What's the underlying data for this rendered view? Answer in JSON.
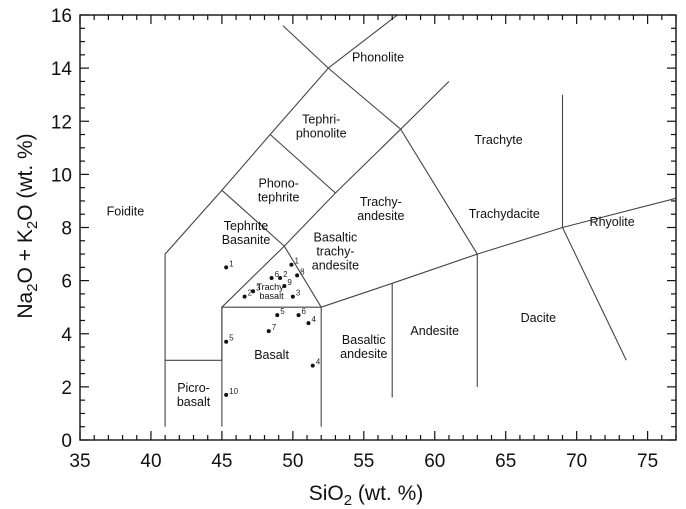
{
  "chart_data": {
    "type": "scatter",
    "title": "",
    "xlabel": "SiO",
    "xlabel_sub": "2",
    "xlabel_unit": " (wt. %)",
    "ylabel_parts": [
      "Na",
      "2",
      "O + K",
      "2",
      "O (wt. %)"
    ],
    "xlim": [
      35,
      77
    ],
    "ylim": [
      0,
      16
    ],
    "x_ticks": [
      35,
      40,
      45,
      50,
      55,
      60,
      65,
      70,
      75
    ],
    "y_ticks": [
      0,
      2,
      4,
      6,
      8,
      10,
      12,
      14,
      16
    ],
    "x_tick_labels": [
      "35",
      "40",
      "45",
      "50",
      "55",
      "60",
      "65",
      "70",
      "75"
    ],
    "y_tick_labels": [
      "0",
      "2",
      "4",
      "6",
      "8",
      "10",
      "12",
      "14",
      "16"
    ],
    "field_boundaries": [
      [
        [
          41,
          0.5
        ],
        [
          41,
          7
        ],
        [
          45,
          9.4
        ],
        [
          48.4,
          11.5
        ],
        [
          52.5,
          14
        ],
        [
          57.6,
          11.7
        ],
        [
          63,
          7
        ],
        [
          69,
          8
        ],
        [
          77,
          9.1
        ]
      ],
      [
        [
          41,
          3
        ],
        [
          45,
          3
        ],
        [
          45,
          5
        ],
        [
          52,
          5
        ],
        [
          52,
          0.5
        ]
      ],
      [
        [
          45,
          0.5
        ],
        [
          45,
          5
        ]
      ],
      [
        [
          45,
          5
        ],
        [
          49.4,
          7.3
        ],
        [
          53,
          9.3
        ],
        [
          57.6,
          11.7
        ],
        [
          61,
          13.5
        ]
      ],
      [
        [
          49.4,
          7.3
        ],
        [
          52,
          5
        ],
        [
          57,
          5.9
        ],
        [
          63,
          7
        ]
      ],
      [
        [
          57,
          1.6
        ],
        [
          57,
          5.9
        ]
      ],
      [
        [
          63,
          2
        ],
        [
          63,
          7
        ]
      ],
      [
        [
          69,
          13
        ],
        [
          69,
          8
        ],
        [
          73.5,
          3
        ]
      ],
      [
        [
          45,
          9.4
        ],
        [
          49.4,
          7.3
        ]
      ],
      [
        [
          48.4,
          11.5
        ],
        [
          53,
          9.3
        ]
      ],
      [
        [
          52.5,
          14
        ],
        [
          49.3,
          15.6
        ]
      ],
      [
        [
          52.5,
          14
        ],
        [
          61,
          17.5
        ]
      ]
    ],
    "field_labels": [
      {
        "lines": [
          "Foidite"
        ],
        "x": 38.2,
        "y": 8.6
      },
      {
        "lines": [
          "Phonolite"
        ],
        "x": 56,
        "y": 14.4
      },
      {
        "lines": [
          "Tephri-",
          "phonolite"
        ],
        "x": 52,
        "y": 11.8
      },
      {
        "lines": [
          "Phono-",
          "tephrite"
        ],
        "x": 49,
        "y": 9.4
      },
      {
        "lines": [
          "Tephrite",
          "Basanite"
        ],
        "x": 46.7,
        "y": 7.8
      },
      {
        "lines": [
          "Trachyte"
        ],
        "x": 64.5,
        "y": 11.3
      },
      {
        "lines": [
          "Trachy-",
          "andesite"
        ],
        "x": 56.2,
        "y": 8.7
      },
      {
        "lines": [
          "Basaltic",
          "trachy-",
          "andesite"
        ],
        "x": 53,
        "y": 7.1
      },
      {
        "lines": [
          "Trachydacite"
        ],
        "x": 64.9,
        "y": 8.5
      },
      {
        "lines": [
          "Rhyolite"
        ],
        "x": 72.5,
        "y": 8.2
      },
      {
        "lines": [
          "Trachy-",
          "basalt"
        ],
        "x": 48.5,
        "y": 5.6,
        "small": true
      },
      {
        "lines": [
          "Andesite"
        ],
        "x": 60,
        "y": 4.1
      },
      {
        "lines": [
          "Dacite"
        ],
        "x": 67.3,
        "y": 4.6
      },
      {
        "lines": [
          "Basaltic",
          "andesite"
        ],
        "x": 55,
        "y": 3.5
      },
      {
        "lines": [
          "Basalt"
        ],
        "x": 48.5,
        "y": 3.2
      },
      {
        "lines": [
          "Picro-",
          "basalt"
        ],
        "x": 43,
        "y": 1.7
      }
    ],
    "series": [
      {
        "points": [
          {
            "x": 45.3,
            "y": 6.5,
            "label": "1"
          },
          {
            "x": 49.9,
            "y": 6.6,
            "label": "1"
          },
          {
            "x": 48.5,
            "y": 6.1,
            "label": "6"
          },
          {
            "x": 49.1,
            "y": 6.1,
            "label": "2"
          },
          {
            "x": 50.3,
            "y": 6.2,
            "label": "8"
          },
          {
            "x": 49.4,
            "y": 5.8,
            "label": "9"
          },
          {
            "x": 46.6,
            "y": 5.4,
            "label": "2"
          },
          {
            "x": 47.2,
            "y": 5.6,
            "label": "3"
          },
          {
            "x": 50,
            "y": 5.4,
            "label": "3"
          },
          {
            "x": 48.9,
            "y": 4.7,
            "label": "5"
          },
          {
            "x": 50.4,
            "y": 4.7,
            "label": "6"
          },
          {
            "x": 51.1,
            "y": 4.4,
            "label": "4"
          },
          {
            "x": 45.3,
            "y": 3.7,
            "label": "5"
          },
          {
            "x": 48.3,
            "y": 4.1,
            "label": "7"
          },
          {
            "x": 51.4,
            "y": 2.8,
            "label": "4"
          },
          {
            "x": 45.3,
            "y": 1.7,
            "label": "10"
          }
        ]
      }
    ]
  }
}
